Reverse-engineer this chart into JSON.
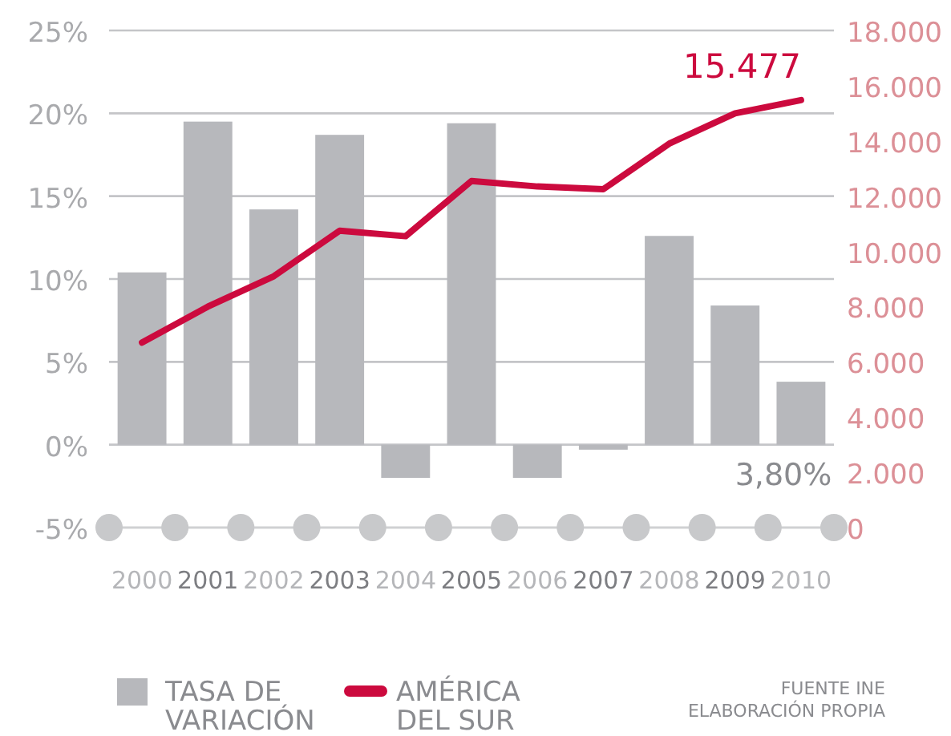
{
  "chart_data": {
    "type": "bar",
    "categories": [
      "2000",
      "2001",
      "2002",
      "2003",
      "2004",
      "2005",
      "2006",
      "2007",
      "2008",
      "2009",
      "2010"
    ],
    "series": [
      {
        "name": "TASA DE VARIACIÓN",
        "color": "#b7b8bc",
        "values": [
          10.4,
          19.5,
          14.2,
          18.7,
          -2.0,
          19.4,
          -2.0,
          -0.3,
          12.6,
          8.4,
          3.8
        ],
        "value_labels": [
          null,
          null,
          null,
          null,
          null,
          null,
          null,
          null,
          null,
          null,
          "3,80%"
        ]
      },
      {
        "name": "AMÉRICA DEL SUR",
        "type": "line",
        "axis": "y2",
        "color": "#cc0a3e",
        "values": [
          6700,
          8000,
          9100,
          10750,
          10550,
          12550,
          12350,
          12250,
          13900,
          15000,
          15477
        ],
        "value_labels": [
          null,
          null,
          null,
          null,
          null,
          null,
          null,
          null,
          null,
          null,
          "15.477"
        ]
      }
    ],
    "ylim": [
      -5,
      25
    ],
    "yticks": [
      {
        "value": -5,
        "label": "-5%"
      },
      {
        "value": 0,
        "label": "0%"
      },
      {
        "value": 5,
        "label": "5%"
      },
      {
        "value": 10,
        "label": "10%"
      },
      {
        "value": 15,
        "label": "15%"
      },
      {
        "value": 20,
        "label": "20%"
      },
      {
        "value": 25,
        "label": "25%"
      }
    ],
    "y2lim": [
      0,
      18000
    ],
    "y2ticks": [
      {
        "value": 0,
        "label": "0"
      },
      {
        "value": 2000,
        "label": "2.000"
      },
      {
        "value": 4000,
        "label": "4.000"
      },
      {
        "value": 6000,
        "label": "6.000"
      },
      {
        "value": 8000,
        "label": "8.000"
      },
      {
        "value": 10000,
        "label": "10.000"
      },
      {
        "value": 12000,
        "label": "12.000"
      },
      {
        "value": 14000,
        "label": "14.000"
      },
      {
        "value": 16000,
        "label": "16.000"
      },
      {
        "value": 18000,
        "label": "18.000"
      }
    ],
    "grid": "y",
    "legend": "bottom left",
    "marker": "none",
    "annotations": [
      "FUENTE INE",
      "ELABORACIÓN PROPIA"
    ]
  }
}
